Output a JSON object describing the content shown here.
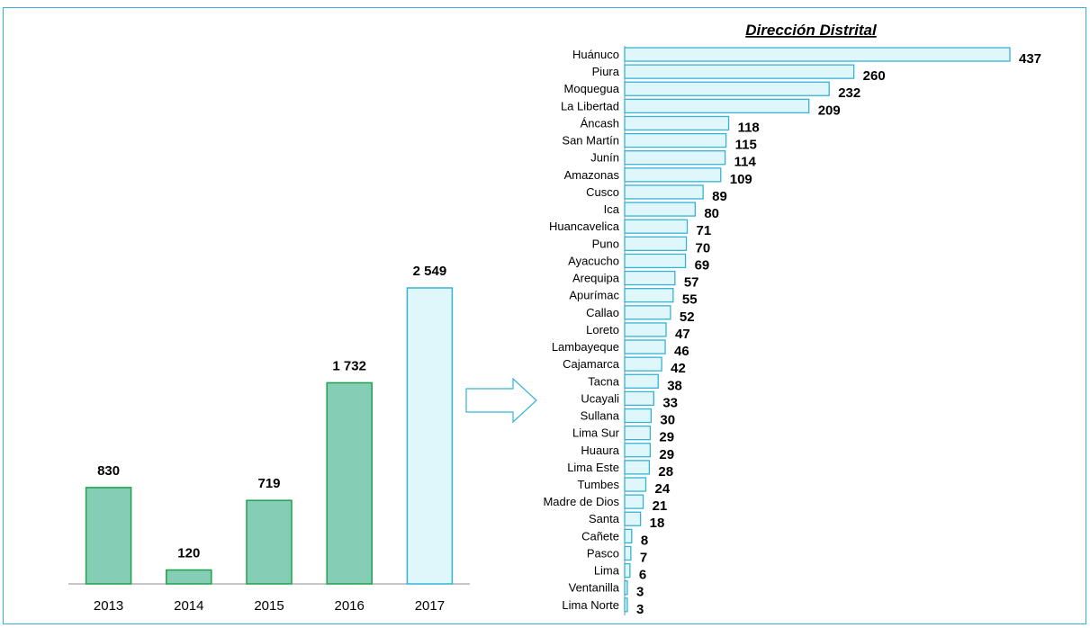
{
  "colors": {
    "frame": "#34b3d6",
    "bar_green_fill": "#86cdb6",
    "bar_green_stroke": "#1ea24a",
    "bar_light_fill": "#dff7fb",
    "bar_light_stroke": "#34b3d6",
    "axis": "#8c8c8c"
  },
  "chart_data": [
    {
      "type": "bar",
      "title": "",
      "xlabel": "",
      "ylabel": "",
      "categories": [
        "2013",
        "2014",
        "2015",
        "2016",
        "2017"
      ],
      "values": [
        830,
        120,
        719,
        1732,
        2549
      ],
      "value_labels": [
        "830",
        "120",
        "719",
        "1 732",
        "2 549"
      ],
      "highlight_index": 4,
      "ylim": [
        0,
        2549
      ],
      "grid": false,
      "legend": "none"
    },
    {
      "type": "bar",
      "orientation": "horizontal",
      "title": "Dirección Distrital",
      "xlabel": "",
      "ylabel": "",
      "categories": [
        "Huánuco",
        "Piura",
        "Moquegua",
        "La Libertad",
        "Áncash",
        "San Martín",
        "Junín",
        "Amazonas",
        "Cusco",
        "Ica",
        "Huancavelica",
        "Puno",
        "Ayacucho",
        "Arequipa",
        "Apurímac",
        "Callao",
        "Loreto",
        "Lambayeque",
        "Cajamarca",
        "Tacna",
        "Ucayali",
        "Sullana",
        "Lima Sur",
        "Huaura",
        "Lima Este",
        "Tumbes",
        "Madre de Dios",
        "Santa",
        "Cañete",
        "Pasco",
        "Lima",
        "Ventanilla",
        "Lima Norte"
      ],
      "values": [
        437,
        260,
        232,
        209,
        118,
        115,
        114,
        109,
        89,
        80,
        71,
        70,
        69,
        57,
        55,
        52,
        47,
        46,
        42,
        38,
        33,
        30,
        29,
        29,
        28,
        24,
        21,
        18,
        8,
        7,
        6,
        3,
        3
      ],
      "xlim": [
        0,
        437
      ],
      "grid": false,
      "legend": "none"
    }
  ],
  "connector": {
    "icon": "arrow-right-icon"
  }
}
